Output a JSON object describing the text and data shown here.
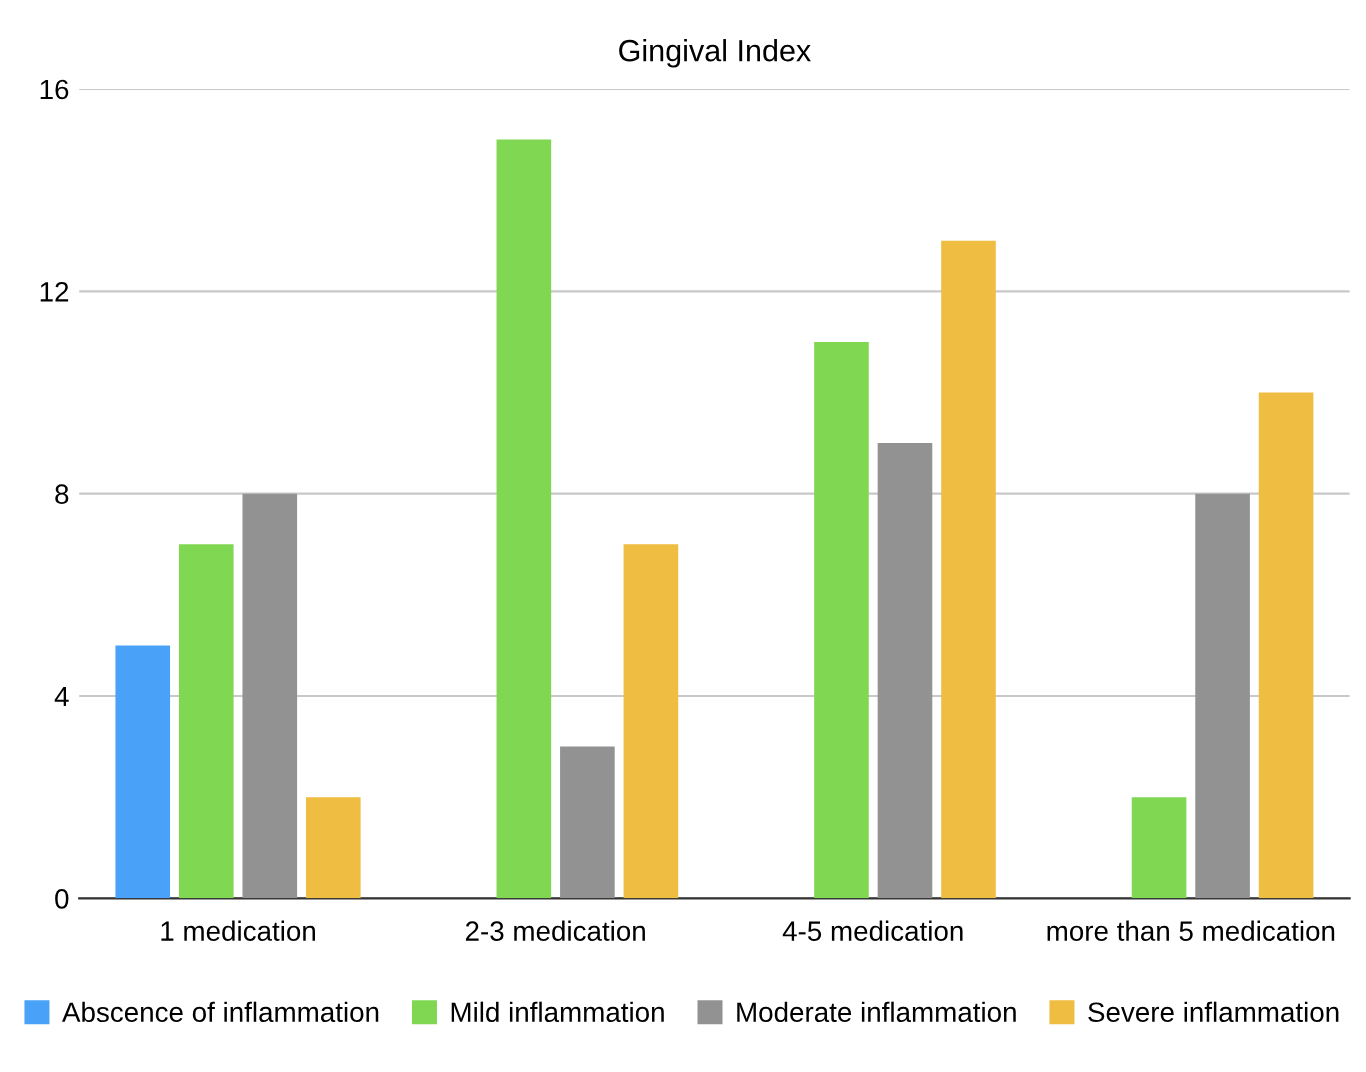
{
  "chart_data": {
    "type": "bar",
    "title": "Gingival Index",
    "categories": [
      "1 medication",
      "2-3 medication",
      "4-5 medication",
      "more than 5 medication"
    ],
    "series": [
      {
        "name": "Abscence of inflammation",
        "color": "#4aa2f8",
        "values": [
          5,
          0,
          0,
          0
        ]
      },
      {
        "name": "Mild inflammation",
        "color": "#80d752",
        "values": [
          7,
          15,
          11,
          2
        ]
      },
      {
        "name": "Moderate inflammation",
        "color": "#929292",
        "values": [
          8,
          3,
          9,
          8
        ]
      },
      {
        "name": "Severe inflammation",
        "color": "#efbd41",
        "values": [
          2,
          7,
          13,
          10
        ]
      }
    ],
    "ylim": [
      0,
      16
    ],
    "yticks": [
      0,
      4,
      8,
      12,
      16
    ],
    "grid": "y",
    "legend": "bottom"
  }
}
